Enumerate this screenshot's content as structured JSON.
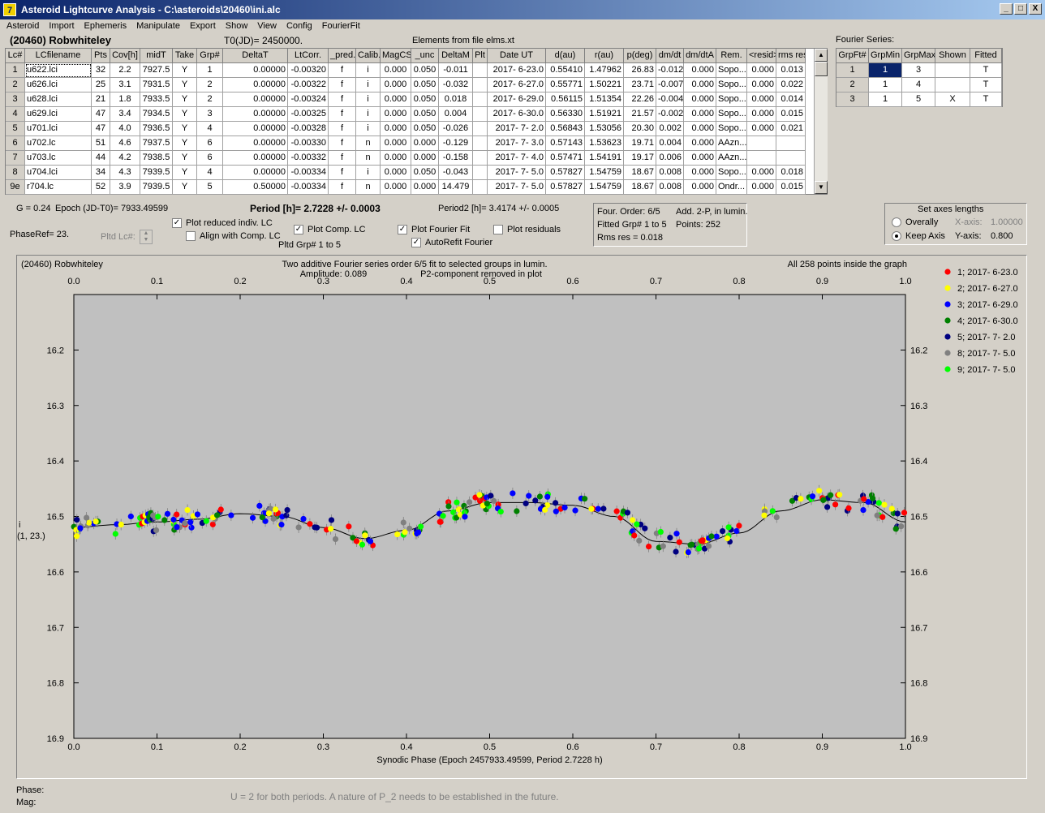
{
  "title": "Asteroid Lightcurve Analysis - C:\\asteroids\\20460\\ini.alc",
  "app_icon": "7",
  "window_buttons": {
    "minimize": "_",
    "maximize": "□",
    "close": "X"
  },
  "menu": [
    "Asteroid",
    "Import",
    "Ephemeris",
    "Manipulate",
    "Export",
    "Show",
    "View",
    "Config",
    "FourierFit"
  ],
  "header": {
    "asteroid": "(20460) Robwhiteley",
    "t0": "T0(JD)= 2450000.",
    "elements": "Elements from file elms.xt"
  },
  "table": {
    "columns": [
      "Lc#",
      "LCfilename",
      "Pts",
      "Cov[h]",
      "midT",
      "Take",
      "Grp#",
      "DeltaT",
      "LtCorr.",
      "_pred.",
      "Calib.",
      "MagCS",
      "_unc",
      "DeltaM",
      "Plt",
      "Date UT",
      "d(au)",
      "r(au)",
      "p(deg)",
      "dm/dt",
      "dm/dtA",
      "Rem.",
      "<resid>",
      "rms res"
    ],
    "rows": [
      [
        "1",
        "u622.lci",
        "32",
        "2.2",
        "7927.5",
        "Y",
        "1",
        "0.00000",
        "-0.00320",
        "f",
        "i",
        "0.000",
        "0.050",
        "-0.011",
        "",
        "2017- 6-23.0",
        "0.55410",
        "1.47962",
        "26.83",
        "-0.012",
        "0.000",
        "Sopo...",
        "0.000",
        "0.013"
      ],
      [
        "2",
        "u626.lci",
        "25",
        "3.1",
        "7931.5",
        "Y",
        "2",
        "0.00000",
        "-0.00322",
        "f",
        "i",
        "0.000",
        "0.050",
        "-0.032",
        "",
        "2017- 6-27.0",
        "0.55771",
        "1.50221",
        "23.71",
        "-0.007",
        "0.000",
        "Sopo...",
        "0.000",
        "0.022"
      ],
      [
        "3",
        "u628.lci",
        "21",
        "1.8",
        "7933.5",
        "Y",
        "2",
        "0.00000",
        "-0.00324",
        "f",
        "i",
        "0.000",
        "0.050",
        "0.018",
        "",
        "2017- 6-29.0",
        "0.56115",
        "1.51354",
        "22.26",
        "-0.004",
        "0.000",
        "Sopo...",
        "0.000",
        "0.014"
      ],
      [
        "4",
        "u629.lci",
        "47",
        "3.4",
        "7934.5",
        "Y",
        "3",
        "0.00000",
        "-0.00325",
        "f",
        "i",
        "0.000",
        "0.050",
        "0.004",
        "",
        "2017- 6-30.0",
        "0.56330",
        "1.51921",
        "21.57",
        "-0.002",
        "0.000",
        "Sopo...",
        "0.000",
        "0.015"
      ],
      [
        "5",
        "u701.lci",
        "47",
        "4.0",
        "7936.5",
        "Y",
        "4",
        "0.00000",
        "-0.00328",
        "f",
        "i",
        "0.000",
        "0.050",
        "-0.026",
        "",
        "2017- 7- 2.0",
        "0.56843",
        "1.53056",
        "20.30",
        "0.002",
        "0.000",
        "Sopo...",
        "0.000",
        "0.021"
      ],
      [
        "6",
        "u702.lc",
        "51",
        "4.6",
        "7937.5",
        "Y",
        "6",
        "0.00000",
        "-0.00330",
        "f",
        "n",
        "0.000",
        "0.000",
        "-0.129",
        "",
        "2017- 7- 3.0",
        "0.57143",
        "1.53623",
        "19.71",
        "0.004",
        "0.000",
        "AAzn...",
        "",
        ""
      ],
      [
        "7",
        "u703.lc",
        "44",
        "4.2",
        "7938.5",
        "Y",
        "6",
        "0.00000",
        "-0.00332",
        "f",
        "n",
        "0.000",
        "0.000",
        "-0.158",
        "",
        "2017- 7- 4.0",
        "0.57471",
        "1.54191",
        "19.17",
        "0.006",
        "0.000",
        "AAzn...",
        "",
        ""
      ],
      [
        "8",
        "u704.lci",
        "34",
        "4.3",
        "7939.5",
        "Y",
        "4",
        "0.00000",
        "-0.00334",
        "f",
        "i",
        "0.000",
        "0.050",
        "-0.043",
        "",
        "2017- 7- 5.0",
        "0.57827",
        "1.54759",
        "18.67",
        "0.008",
        "0.000",
        "Sopo...",
        "0.000",
        "0.018"
      ],
      [
        "9e",
        "r704.lc",
        "52",
        "3.9",
        "7939.5",
        "Y",
        "5",
        "0.50000",
        "-0.00334",
        "f",
        "n",
        "0.000",
        "0.000",
        "14.479",
        "",
        "2017- 7- 5.0",
        "0.57827",
        "1.54759",
        "18.67",
        "0.008",
        "0.000",
        "Ondr...",
        "0.000",
        "0.015"
      ]
    ]
  },
  "fourier_table": {
    "label": "Fourier Series:",
    "columns": [
      "GrpFt#",
      "GrpMin",
      "GrpMax",
      "Shown",
      "Fitted"
    ],
    "rows": [
      [
        "1",
        "1",
        "3",
        "",
        "T"
      ],
      [
        "2",
        "1",
        "4",
        "",
        "T"
      ],
      [
        "3",
        "1",
        "5",
        "X",
        "T"
      ]
    ]
  },
  "info": {
    "g": "G = 0.24",
    "epoch": "Epoch (JD-T0)= 7933.49599",
    "period": "Period [h]= 2.7228 +/- 0.0003",
    "period2": "Period2 [h]= 3.4174 +/- 0.0005",
    "phaseref": "PhaseRef= 23.",
    "pltd_lc": "Pltd Lc#:",
    "pltd_grp": "Pltd Grp#  1   to   5"
  },
  "checks": {
    "reduced": "Plot reduced indiv. LC",
    "align": "Align with Comp. LC",
    "comp": "Plot Comp. LC",
    "fourier": "Plot Fourier Fit",
    "residuals": "Plot residuals",
    "autorefit": "AutoRefit Fourier"
  },
  "four_box": {
    "order": "Four. Order:  6/5",
    "add": "Add. 2-P, in lumin.",
    "fitted": "Fitted Grp# 1 to 5",
    "points": "Points: 252",
    "rms": "Rms res     = 0.018"
  },
  "axes_box": {
    "title": "Set axes lengths",
    "overall": "Overally",
    "keep": "Keep Axis",
    "xaxis": "X-axis:",
    "xval": "1.00000",
    "yaxis": "Y-axis:",
    "yval": "0.800"
  },
  "plot_header": {
    "name": "(20460) Robwhiteley",
    "desc1": "Two additive Fourier series order 6/5 fit to selected groups in lumin.",
    "desc2": "Amplitude: 0.089",
    "desc3": "P2-component removed in plot",
    "points": "All 258 points inside the graph"
  },
  "bottom": {
    "phase": "Phase:",
    "mag": "Mag:",
    "note": "U = 2 for both periods.  A nature of P_2 needs to be established in the future."
  },
  "chart_data": {
    "type": "scatter",
    "xlabel": "Synodic Phase (Epoch 2457933.49599, Period 2.7228 h)",
    "ylabel": "i",
    "ylabel2": "(1, 23.)",
    "xlim": [
      0,
      1
    ],
    "ylim": [
      16.9,
      16.1
    ],
    "xticks": [
      "0.0",
      "0.1",
      "0.2",
      "0.3",
      "0.4",
      "0.5",
      "0.6",
      "0.7",
      "0.8",
      "0.9",
      "1.0"
    ],
    "yticks": [
      "16.2",
      "16.3",
      "16.4",
      "16.5",
      "16.6",
      "16.7",
      "16.8",
      "16.9"
    ],
    "series": [
      {
        "name": "1; 2017- 6-23.0",
        "color": "#ff0000"
      },
      {
        "name": "2; 2017- 6-27.0",
        "color": "#ffff00"
      },
      {
        "name": "3; 2017- 6-29.0",
        "color": "#0000ff"
      },
      {
        "name": "4; 2017- 6-30.0",
        "color": "#008000"
      },
      {
        "name": "5; 2017- 7- 2.0",
        "color": "#000080"
      },
      {
        "name": "8; 2017- 7- 5.0",
        "color": "#808080"
      },
      {
        "name": "9; 2017- 7- 5.0",
        "color": "#00ff00"
      }
    ],
    "fit_curve": [
      [
        0,
        16.52
      ],
      [
        0.05,
        16.515
      ],
      [
        0.1,
        16.51
      ],
      [
        0.15,
        16.505
      ],
      [
        0.2,
        16.495
      ],
      [
        0.25,
        16.5
      ],
      [
        0.3,
        16.52
      ],
      [
        0.35,
        16.54
      ],
      [
        0.4,
        16.525
      ],
      [
        0.45,
        16.49
      ],
      [
        0.5,
        16.475
      ],
      [
        0.55,
        16.475
      ],
      [
        0.6,
        16.48
      ],
      [
        0.65,
        16.5
      ],
      [
        0.7,
        16.545
      ],
      [
        0.75,
        16.55
      ],
      [
        0.8,
        16.53
      ],
      [
        0.85,
        16.49
      ],
      [
        0.9,
        16.47
      ],
      [
        0.95,
        16.475
      ],
      [
        1.0,
        16.51
      ]
    ]
  }
}
